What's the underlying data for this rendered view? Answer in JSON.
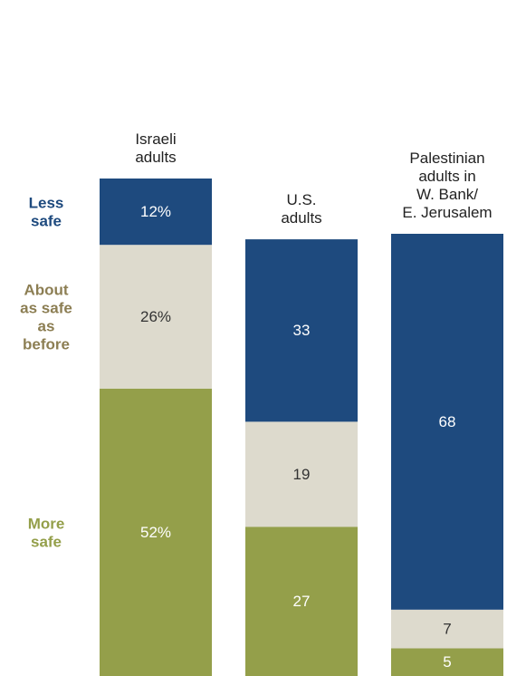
{
  "chart_data": {
    "type": "bar",
    "stacked": true,
    "categories": [
      "Israeli adults",
      "U.S. adults",
      "Palestinian adults in W. Bank/ E. Jerusalem"
    ],
    "series": [
      {
        "name": "More safe",
        "values": [
          52,
          27,
          5
        ],
        "labels": [
          "52%",
          "27",
          "5"
        ],
        "color": "#949f4a",
        "text_color": "#ffffff"
      },
      {
        "name": "About as safe as before",
        "values": [
          26,
          19,
          7
        ],
        "labels": [
          "26%",
          "19",
          "7"
        ],
        "color": "#dddacd",
        "text_color": "#333333"
      },
      {
        "name": "Less safe",
        "values": [
          12,
          33,
          68
        ],
        "labels": [
          "12%",
          "33",
          "68"
        ],
        "color": "#1e4a7e",
        "text_color": "#ffffff"
      }
    ],
    "column_labels": [
      [
        "Israeli",
        "adults"
      ],
      [
        "U.S.",
        "adults"
      ],
      [
        "Palestinian",
        "adults in",
        "W. Bank/",
        "E. Jerusalem"
      ]
    ],
    "category_labels": [
      {
        "name": "Less safe",
        "lines": [
          "Less",
          "safe"
        ],
        "color": "#1e4a7e"
      },
      {
        "name": "About as safe as before",
        "lines": [
          "About",
          "as safe",
          "as",
          "before"
        ],
        "color": "#8c7e53"
      },
      {
        "name": "More safe",
        "lines": [
          "More",
          "safe"
        ],
        "color": "#949f4a"
      }
    ],
    "ylim": [
      0,
      100
    ],
    "legend": "left",
    "grid": false
  }
}
